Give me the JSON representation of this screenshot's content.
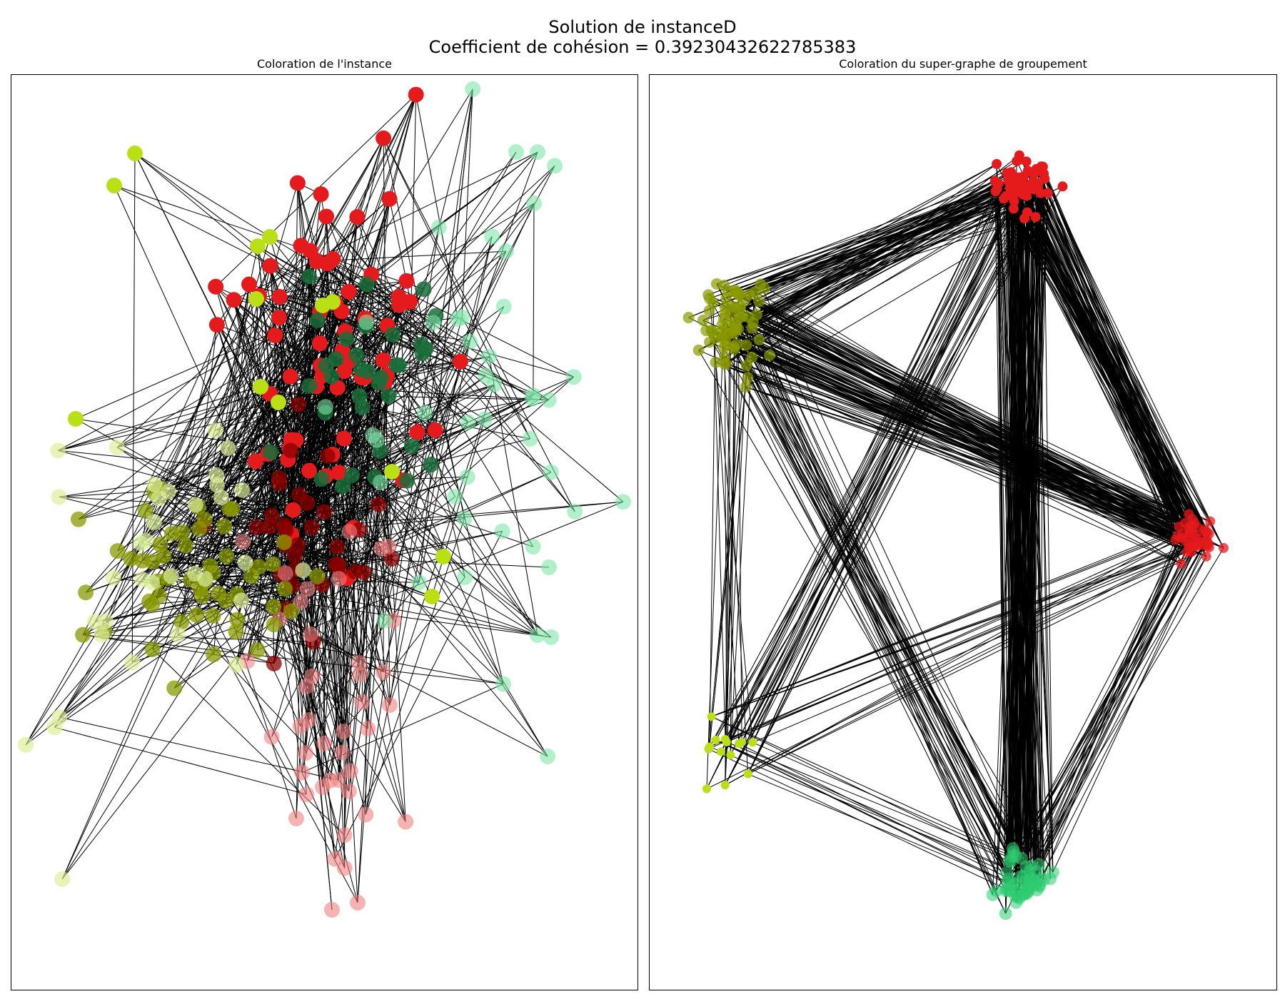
{
  "figure": {
    "title_line1": "Solution de instanceD",
    "title_line2": "Coefficient de cohésion = 0.39230432622785383"
  },
  "panels": [
    {
      "title": "Coloration de l'instance"
    },
    {
      "title": "Coloration du super-graphe de groupement"
    }
  ],
  "colors": {
    "red": "#e41a1c",
    "dark_red": "#8b0000",
    "light_red": "#f08080",
    "lime": "#b8e015",
    "olive": "#8a9a00",
    "pale_lime": "#dcef9a",
    "dark_green": "#1a6e3a",
    "light_green": "#7fe6a8",
    "green": "#2ecc71",
    "edge": "#000000"
  }
}
